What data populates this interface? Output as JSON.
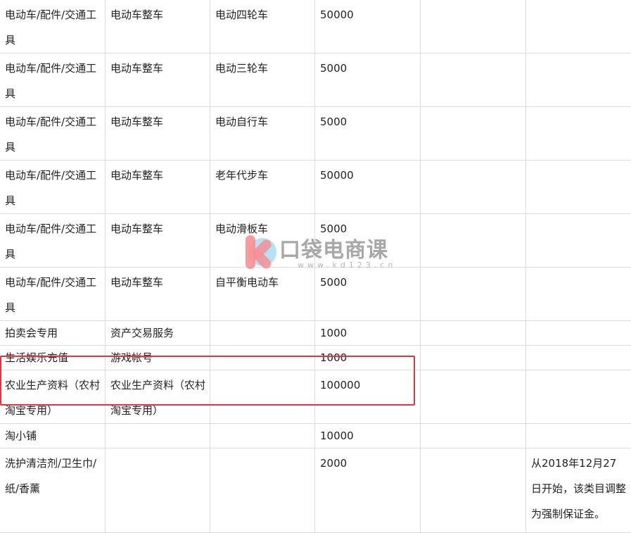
{
  "rows": [
    [
      "电动车/配件/交通工具",
      "电动车整车",
      "电动四轮车",
      "50000",
      "",
      ""
    ],
    [
      "电动车/配件/交通工具",
      "电动车整车",
      "电动三轮车",
      "5000",
      "",
      ""
    ],
    [
      "电动车/配件/交通工具",
      "电动车整车",
      "电动自行车",
      "5000",
      "",
      ""
    ],
    [
      "电动车/配件/交通工具",
      "电动车整车",
      "老年代步车",
      "50000",
      "",
      ""
    ],
    [
      "电动车/配件/交通工具",
      "电动车整车",
      "电动滑板车",
      "5000",
      "",
      ""
    ],
    [
      "电动车/配件/交通工具",
      "电动车整车",
      "自平衡电动车",
      "5000",
      "",
      ""
    ],
    [
      "拍卖会专用",
      "资产交易服务",
      "",
      "1000",
      "",
      ""
    ],
    [
      "生活娱乐充值",
      "游戏帐号",
      "",
      "1000",
      "",
      ""
    ],
    [
      "农业生产资料（农村淘宝专用）",
      "农业生产资料（农村淘宝专用）",
      "",
      "100000",
      "",
      ""
    ],
    [
      "淘小铺",
      "",
      "",
      "10000",
      "",
      ""
    ],
    [
      "洗护清洁剂/卫生巾/纸/香薰",
      "",
      "",
      "2000",
      "",
      "从2018年12月27日开始，该类目调整为强制保证金。"
    ]
  ],
  "highlight_color": "#e8323c",
  "watermark": {
    "brand": "口袋电商课",
    "url": "www.kd123.cn"
  }
}
